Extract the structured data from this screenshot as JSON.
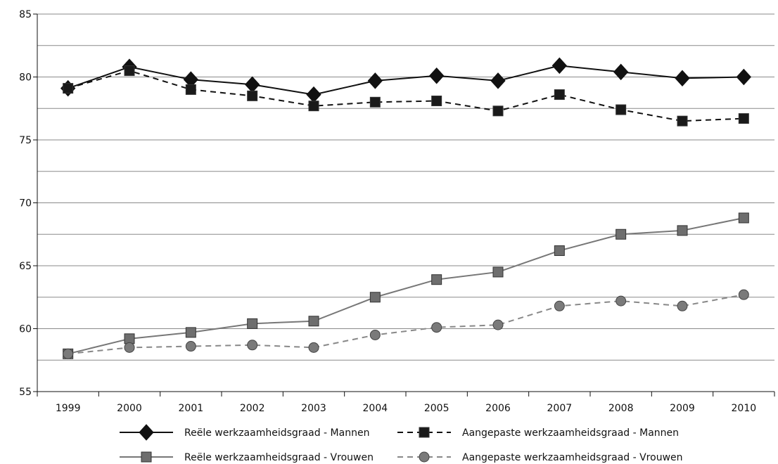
{
  "chart_data": {
    "type": "line",
    "title": "",
    "xlabel": "",
    "ylabel": "",
    "ylim": [
      55,
      85
    ],
    "yticks": [
      "55",
      "60",
      "65",
      "70",
      "75",
      "80",
      "85"
    ],
    "grid": true,
    "legend_position": "bottom",
    "categories": [
      "1999",
      "2000",
      "2001",
      "2002",
      "2003",
      "2004",
      "2005",
      "2006",
      "2007",
      "2008",
      "2009",
      "2010"
    ],
    "series": [
      {
        "name": "Reële werkzaamheidsgraad - Mannen",
        "values": [
          79.1,
          80.8,
          79.8,
          79.4,
          78.6,
          79.7,
          80.1,
          79.7,
          80.9,
          80.4,
          79.9,
          80.0
        ],
        "color": "#111111",
        "dash": "solid",
        "marker": "diamond"
      },
      {
        "name": "Aangepaste werkzaamheidsgraad - Mannen",
        "values": [
          79.1,
          80.5,
          79.0,
          78.5,
          77.7,
          78.0,
          78.1,
          77.3,
          78.6,
          77.4,
          76.5,
          76.7
        ],
        "color": "#111111",
        "dash": "dashed",
        "marker": "square"
      },
      {
        "name": "Reële werkzaamheidsgraad - Vrouwen",
        "values": [
          58.0,
          59.2,
          59.7,
          60.4,
          60.6,
          62.5,
          63.9,
          64.5,
          66.2,
          67.5,
          67.8,
          68.8
        ],
        "color": "#777777",
        "dash": "solid",
        "marker": "square"
      },
      {
        "name": "Aangepaste werkzaamheidsgraad - Vrouwen",
        "values": [
          58.0,
          58.5,
          58.6,
          58.7,
          58.5,
          59.5,
          60.1,
          60.3,
          61.8,
          62.2,
          61.8,
          62.7
        ],
        "color": "#888888",
        "dash": "dashed",
        "marker": "circle"
      }
    ]
  }
}
